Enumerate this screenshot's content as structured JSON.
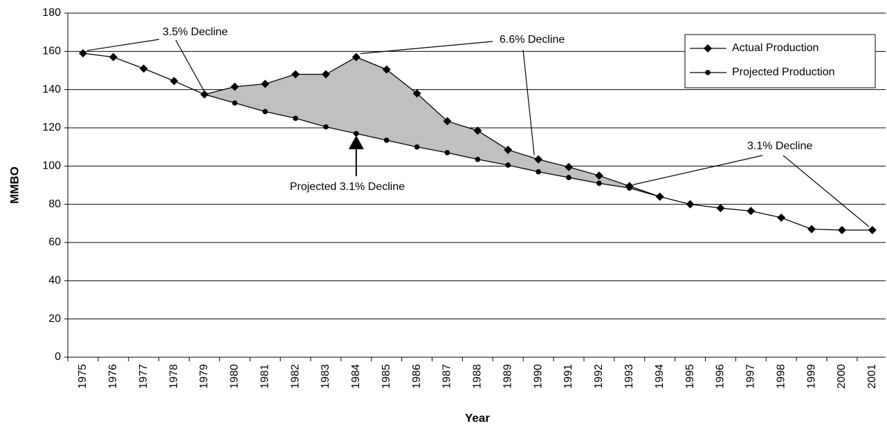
{
  "chart_data": {
    "type": "line",
    "x_label": "Year",
    "y_label": "MMBO",
    "categories": [
      "1975",
      "1976",
      "1977",
      "1978",
      "1979",
      "1980",
      "1981",
      "1982",
      "1983",
      "1984",
      "1985",
      "1986",
      "1987",
      "1988",
      "1989",
      "1990",
      "1991",
      "1992",
      "1993",
      "1994",
      "1995",
      "1996",
      "1997",
      "1998",
      "1999",
      "2000",
      "2001"
    ],
    "series": [
      {
        "name": "Actual Production",
        "color": "#000000",
        "marker": "diamond",
        "values": [
          159,
          157,
          151,
          144.5,
          137.5,
          141.5,
          143,
          148,
          148,
          157,
          150.5,
          138,
          123.5,
          118.5,
          108.5,
          103.5,
          99.5,
          95,
          89.5,
          84,
          80,
          78,
          76.5,
          73,
          67,
          66.5,
          66.5
        ]
      },
      {
        "name": "Projected Production",
        "color": "#000000",
        "marker": "circle",
        "values": [
          null,
          null,
          null,
          null,
          137.5,
          133,
          128.5,
          125,
          120.5,
          117,
          113.5,
          110,
          107,
          103.5,
          100.5,
          97,
          94,
          91,
          88.5,
          84,
          null,
          null,
          null,
          null,
          null,
          null,
          null
        ]
      }
    ],
    "fill_between_color": "#c0c0c0",
    "annotations": [
      "3.5% Decline",
      "6.6% Decline",
      "3.1% Decline",
      "Projected 3.1% Decline"
    ],
    "ylim": [
      0,
      180
    ],
    "yticks": [
      0,
      20,
      40,
      60,
      80,
      100,
      120,
      140,
      160,
      180
    ],
    "grid": true,
    "legend": "top-right"
  }
}
